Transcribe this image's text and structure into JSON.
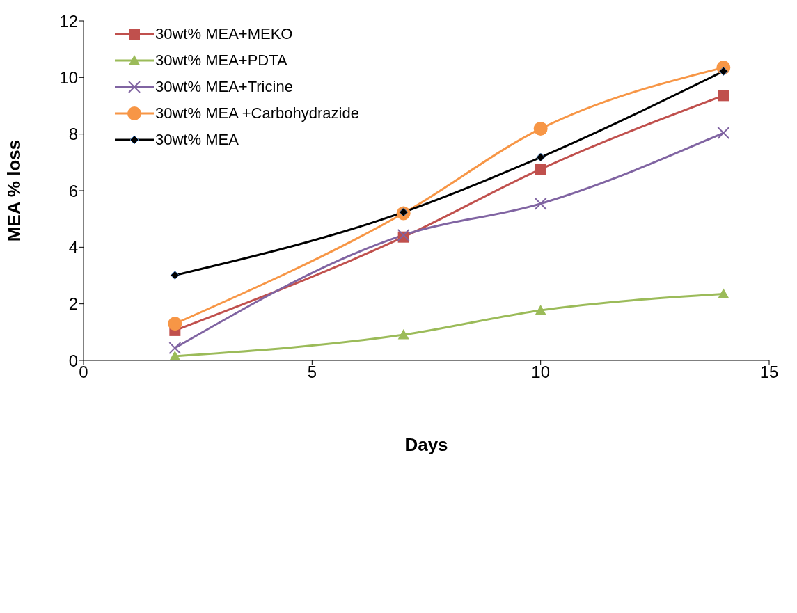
{
  "chart_data": {
    "type": "line",
    "xlabel": "Days",
    "ylabel": "MEA % loss",
    "x": [
      2,
      7,
      10,
      14
    ],
    "series": [
      {
        "name": "30wt% MEA+MEKO",
        "color": "#c0504d",
        "marker": "square",
        "values": [
          1.06,
          4.36,
          6.76,
          9.36
        ]
      },
      {
        "name": "30wt% MEA+PDTA",
        "color": "#9bbb59",
        "marker": "triangle",
        "values": [
          0.15,
          0.91,
          1.77,
          2.35
        ]
      },
      {
        "name": "30wt% MEA+Tricine",
        "color": "#8064a2",
        "marker": "cross",
        "values": [
          0.44,
          4.43,
          5.54,
          8.04
        ]
      },
      {
        "name": "30wt% MEA +Carbohydrazide",
        "color": "#f79646",
        "marker": "circle",
        "values": [
          1.3,
          5.2,
          8.19,
          10.35
        ]
      },
      {
        "name": "30wt% MEA",
        "color": "#000000",
        "marker": "diamond",
        "values": [
          3.01,
          5.24,
          7.18,
          10.22
        ]
      }
    ],
    "xlim": [
      0,
      15
    ],
    "xticks": [
      0,
      5,
      10,
      15
    ],
    "ylim": [
      0,
      12
    ],
    "yticks": [
      0,
      2,
      4,
      6,
      8,
      10,
      12
    ],
    "grid": false,
    "legend": "top left"
  }
}
